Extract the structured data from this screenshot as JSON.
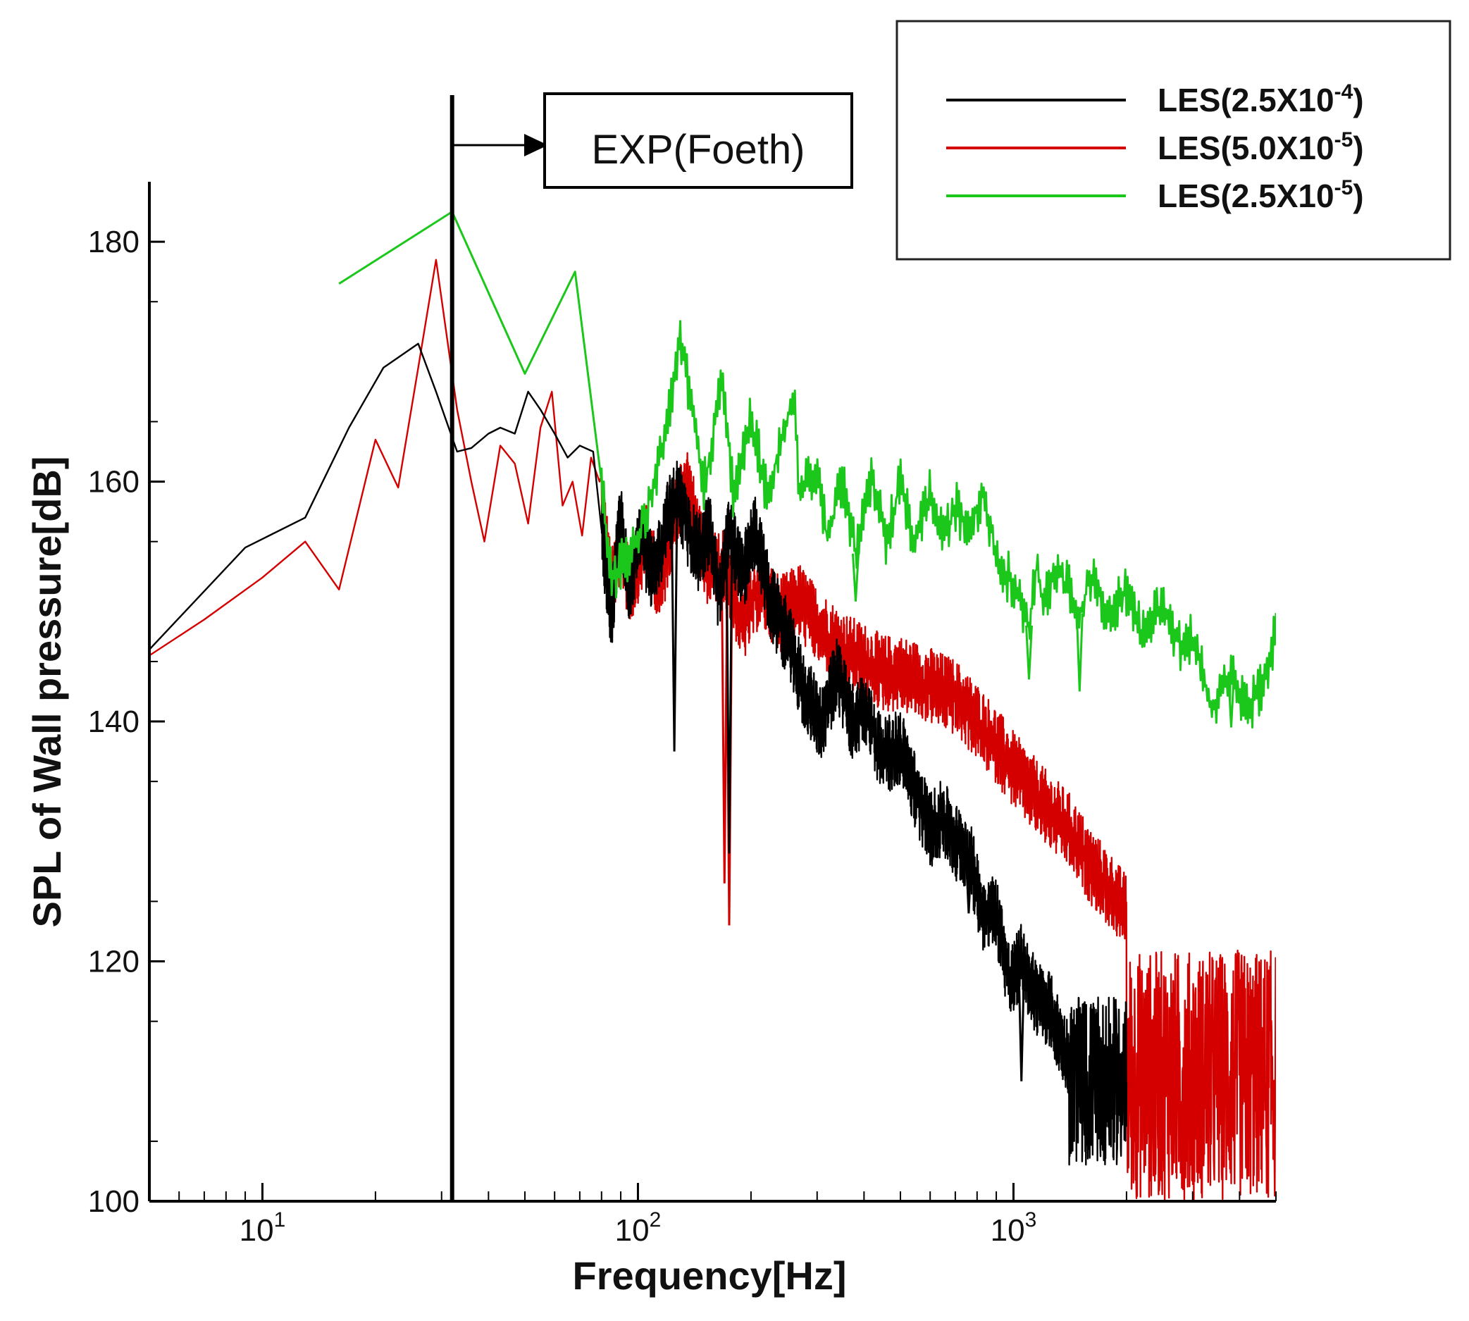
{
  "chart_data": {
    "type": "line",
    "xlabel": "Frequency[Hz]",
    "ylabel": "SPL of Wall pressure[dB]",
    "xscale": "log",
    "xlim": [
      5,
      5000
    ],
    "ylim": [
      100,
      185
    ],
    "y_ticks": [
      "100",
      "120",
      "140",
      "160",
      "180"
    ],
    "x_ticks": [
      {
        "base": "10",
        "exp": "1"
      },
      {
        "base": "10",
        "exp": "2"
      },
      {
        "base": "10",
        "exp": "3"
      }
    ],
    "grid": false,
    "legend_position": "top-right",
    "annotation": {
      "text": "EXP(Foeth)",
      "x": 32
    },
    "series": [
      {
        "name": "LES(2.5X10",
        "name_exp": "-4",
        "color": "#000000",
        "envelope": {
          "start": 1400,
          "end": 2000,
          "lo": 103,
          "hi": 117
        },
        "points": [
          [
            5,
            146
          ],
          [
            9,
            154.5
          ],
          [
            13,
            157
          ],
          [
            17,
            164.5
          ],
          [
            21,
            169.5
          ],
          [
            26,
            171.5
          ],
          [
            29,
            167.5
          ],
          [
            33,
            162.5
          ],
          [
            36,
            162.8
          ],
          [
            40,
            164
          ],
          [
            43,
            164.5
          ],
          [
            47,
            164
          ],
          [
            51,
            167.5
          ],
          [
            55,
            166
          ],
          [
            60,
            164
          ],
          [
            65,
            162
          ],
          [
            70,
            163
          ],
          [
            76,
            162.5
          ],
          [
            80,
            156
          ],
          [
            85,
            149
          ],
          [
            90,
            157
          ],
          [
            95,
            150
          ],
          [
            100,
            156
          ],
          [
            110,
            152
          ],
          [
            120,
            157
          ],
          [
            128,
            159
          ],
          [
            135,
            156
          ],
          [
            145,
            154
          ],
          [
            155,
            156
          ],
          [
            165,
            150
          ],
          [
            175,
            156
          ],
          [
            190,
            152
          ],
          [
            205,
            156
          ],
          [
            225,
            150
          ],
          [
            250,
            147
          ],
          [
            280,
            142
          ],
          [
            310,
            140
          ],
          [
            340,
            144
          ],
          [
            370,
            140
          ],
          [
            400,
            141
          ],
          [
            450,
            137
          ],
          [
            500,
            138
          ],
          [
            550,
            134
          ],
          [
            600,
            131
          ],
          [
            650,
            132
          ],
          [
            700,
            130
          ],
          [
            760,
            129
          ],
          [
            830,
            124
          ],
          [
            900,
            124
          ],
          [
            980,
            118
          ],
          [
            1050,
            120
          ],
          [
            1150,
            117
          ],
          [
            1250,
            116
          ],
          [
            1350,
            113
          ],
          [
            1500,
            110
          ],
          [
            1700,
            108
          ],
          [
            1900,
            106
          ],
          [
            2000,
            105
          ]
        ],
        "dips": [
          [
            125,
            137.5
          ],
          [
            175,
            129
          ],
          [
            760,
            124
          ],
          [
            1050,
            110
          ]
        ]
      },
      {
        "name": "LES(5.0X10",
        "name_exp": "-5",
        "color": "#d40000",
        "envelope": {
          "start": 2000,
          "end": 5000,
          "lo": 100,
          "hi": 121
        },
        "points": [
          [
            5,
            145.5
          ],
          [
            7,
            148.5
          ],
          [
            10,
            152
          ],
          [
            13,
            155
          ],
          [
            16,
            151
          ],
          [
            20,
            163.5
          ],
          [
            23,
            159.5
          ],
          [
            26,
            169.5
          ],
          [
            29,
            178.5
          ],
          [
            33,
            166
          ],
          [
            36,
            160
          ],
          [
            39,
            155
          ],
          [
            43,
            163
          ],
          [
            47,
            161.5
          ],
          [
            51,
            156.5
          ],
          [
            55,
            164.5
          ],
          [
            59,
            167.5
          ],
          [
            63,
            158
          ],
          [
            67,
            160
          ],
          [
            71,
            155.5
          ],
          [
            75,
            162
          ],
          [
            79,
            160
          ],
          [
            85,
            151
          ],
          [
            90,
            155
          ],
          [
            95,
            151
          ],
          [
            105,
            155
          ],
          [
            115,
            151
          ],
          [
            125,
            157.5
          ],
          [
            135,
            160
          ],
          [
            150,
            153
          ],
          [
            170,
            153
          ],
          [
            190,
            148
          ],
          [
            210,
            151
          ],
          [
            240,
            149
          ],
          [
            270,
            150
          ],
          [
            300,
            148
          ],
          [
            350,
            146
          ],
          [
            400,
            145
          ],
          [
            450,
            144
          ],
          [
            500,
            144
          ],
          [
            600,
            143
          ],
          [
            700,
            142
          ],
          [
            800,
            140
          ],
          [
            900,
            138
          ],
          [
            1000,
            136
          ],
          [
            1200,
            133
          ],
          [
            1400,
            131
          ],
          [
            1600,
            128
          ],
          [
            1800,
            126
          ],
          [
            2000,
            124
          ],
          [
            2500,
            120
          ],
          [
            3000,
            118
          ],
          [
            3500,
            116
          ],
          [
            4000,
            113
          ],
          [
            4500,
            110
          ],
          [
            5000,
            108
          ]
        ],
        "dips": [
          [
            170,
            126.5
          ],
          [
            175,
            123
          ]
        ]
      },
      {
        "name": "LES(2.5X10",
        "name_exp": "-5",
        "color": "#1cc71c",
        "points": [
          [
            16,
            176.5
          ],
          [
            32,
            182.5
          ],
          [
            50,
            169
          ],
          [
            68,
            177.5
          ],
          [
            80,
            160
          ],
          [
            85,
            152
          ],
          [
            100,
            155
          ],
          [
            115,
            162
          ],
          [
            130,
            172
          ],
          [
            150,
            159.5
          ],
          [
            168,
            168.5
          ],
          [
            180,
            158.5
          ],
          [
            200,
            165.5
          ],
          [
            220,
            159
          ],
          [
            260,
            167
          ],
          [
            270,
            159
          ],
          [
            300,
            161
          ],
          [
            320,
            155
          ],
          [
            350,
            160.5
          ],
          [
            380,
            154
          ],
          [
            420,
            160
          ],
          [
            460,
            155
          ],
          [
            500,
            160
          ],
          [
            540,
            155
          ],
          [
            600,
            159
          ],
          [
            650,
            155
          ],
          [
            700,
            158
          ],
          [
            760,
            156
          ],
          [
            830,
            159
          ],
          [
            900,
            154
          ],
          [
            970,
            152
          ],
          [
            1050,
            150
          ],
          [
            1100,
            148
          ],
          [
            1150,
            153
          ],
          [
            1200,
            150
          ],
          [
            1300,
            153
          ],
          [
            1400,
            151
          ],
          [
            1500,
            149
          ],
          [
            1600,
            152
          ],
          [
            1800,
            149
          ],
          [
            2000,
            151
          ],
          [
            2200,
            147
          ],
          [
            2500,
            150
          ],
          [
            2800,
            146
          ],
          [
            3000,
            147
          ],
          [
            3400,
            141
          ],
          [
            3800,
            144
          ],
          [
            4200,
            141
          ],
          [
            4600,
            143
          ],
          [
            5000,
            147.5
          ]
        ],
        "dips": [
          [
            380,
            150
          ],
          [
            1100,
            143.5
          ],
          [
            1500,
            142.5
          ],
          [
            3800,
            139.5
          ]
        ]
      }
    ]
  }
}
